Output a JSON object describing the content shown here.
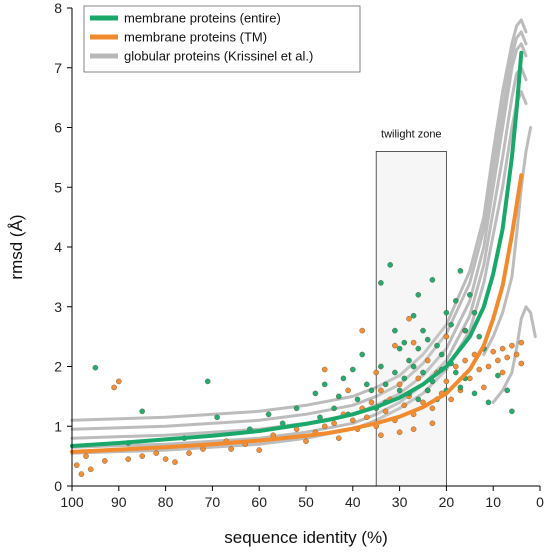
{
  "chart_data": {
    "type": "scatter",
    "xlabel": "sequence identity (%)",
    "ylabel": "rmsd (Å)",
    "xlim": [
      100,
      0
    ],
    "ylim": [
      0,
      8
    ],
    "x_reversed": true,
    "xticks": [
      100,
      90,
      80,
      70,
      60,
      50,
      40,
      30,
      20,
      10,
      0
    ],
    "yticks": [
      0,
      1,
      2,
      3,
      4,
      5,
      6,
      7,
      8
    ],
    "grid": false,
    "legend_position": "top-left",
    "legend": [
      {
        "label": "membrane proteins (entire)",
        "color": "#1aa86a"
      },
      {
        "label": "membrane proteins (TM)",
        "color": "#f28a2e"
      },
      {
        "label": "globular proteins (Krissinel et al.)",
        "color": "#b8b8b8"
      }
    ],
    "annotations": [
      {
        "text": "twilight zone",
        "x_range": [
          35,
          20
        ],
        "y_range": [
          0,
          5.6
        ]
      }
    ],
    "series": [
      {
        "name": "membrane proteins (entire)",
        "kind": "fit-line",
        "color": "#1aa86a",
        "x": [
          100,
          90,
          80,
          70,
          60,
          50,
          45,
          40,
          35,
          30,
          25,
          20,
          15,
          12,
          10,
          8,
          6,
          5,
          4
        ],
        "y": [
          0.67,
          0.72,
          0.78,
          0.84,
          0.92,
          1.04,
          1.11,
          1.2,
          1.32,
          1.48,
          1.7,
          2.0,
          2.5,
          3.0,
          3.55,
          4.3,
          5.5,
          6.3,
          7.25
        ]
      },
      {
        "name": "membrane proteins (TM)",
        "kind": "fit-line",
        "color": "#f28a2e",
        "x": [
          100,
          90,
          80,
          70,
          60,
          50,
          45,
          40,
          35,
          30,
          25,
          20,
          15,
          12,
          10,
          8,
          6,
          5,
          4
        ],
        "y": [
          0.57,
          0.61,
          0.65,
          0.7,
          0.76,
          0.84,
          0.89,
          0.96,
          1.05,
          1.16,
          1.32,
          1.55,
          1.95,
          2.35,
          2.8,
          3.35,
          4.2,
          4.7,
          5.2
        ]
      },
      {
        "name": "membrane proteins (entire)",
        "kind": "points",
        "color": "#1aa86a",
        "points": [
          [
            95,
            1.98
          ],
          [
            85,
            1.25
          ],
          [
            71,
            1.75
          ],
          [
            69,
            1.15
          ],
          [
            46,
            1.7
          ],
          [
            43,
            1.5
          ],
          [
            40,
            1.95
          ],
          [
            38,
            2.2
          ],
          [
            34,
            3.4
          ],
          [
            32,
            3.7
          ],
          [
            31,
            2.6
          ],
          [
            30,
            2.3
          ],
          [
            29,
            2.4
          ],
          [
            28,
            2.1
          ],
          [
            27,
            2.85
          ],
          [
            26,
            3.2
          ],
          [
            25,
            2.6
          ],
          [
            24,
            2.45
          ],
          [
            23,
            3.45
          ],
          [
            22,
            2.35
          ],
          [
            21,
            2.2
          ],
          [
            20,
            2.9
          ],
          [
            19,
            2.7
          ],
          [
            18,
            3.1
          ],
          [
            17,
            3.6
          ],
          [
            16,
            2.6
          ],
          [
            15,
            3.2
          ],
          [
            14,
            2.9
          ],
          [
            13,
            2.5
          ],
          [
            12,
            2.3
          ],
          [
            36,
            1.6
          ],
          [
            34,
            2.0
          ],
          [
            33,
            1.7
          ],
          [
            31,
            1.9
          ],
          [
            29,
            1.8
          ],
          [
            27,
            2.0
          ],
          [
            25,
            1.9
          ],
          [
            23,
            1.75
          ],
          [
            21,
            1.95
          ],
          [
            19,
            2.05
          ],
          [
            58,
            1.2
          ],
          [
            52,
            1.3
          ],
          [
            48,
            1.55
          ],
          [
            44,
            1.3
          ],
          [
            42,
            1.8
          ],
          [
            39,
            1.45
          ],
          [
            37,
            1.7
          ],
          [
            26,
            2.3
          ],
          [
            24,
            1.6
          ],
          [
            18,
            1.9
          ],
          [
            9,
            1.85
          ],
          [
            7,
            1.6
          ],
          [
            6,
            1.25
          ],
          [
            11,
            1.4
          ],
          [
            14,
            1.55
          ],
          [
            16,
            1.8
          ],
          [
            30,
            1.6
          ],
          [
            28,
            1.55
          ],
          [
            22,
            1.45
          ],
          [
            20,
            1.6
          ],
          [
            88,
            0.72
          ],
          [
            76,
            0.8
          ],
          [
            62,
            0.95
          ],
          [
            55,
            1.05
          ],
          [
            47,
            1.15
          ],
          [
            41,
            1.2
          ],
          [
            35,
            1.3
          ],
          [
            33,
            1.4
          ],
          [
            26,
            1.45
          ],
          [
            17,
            1.65
          ]
        ]
      },
      {
        "name": "membrane proteins (TM)",
        "kind": "points",
        "color": "#f28a2e",
        "points": [
          [
            99,
            0.35
          ],
          [
            98,
            0.2
          ],
          [
            97,
            0.5
          ],
          [
            96,
            0.28
          ],
          [
            91,
            1.65
          ],
          [
            90,
            1.75
          ],
          [
            88,
            0.45
          ],
          [
            82,
            0.55
          ],
          [
            78,
            0.4
          ],
          [
            72,
            0.62
          ],
          [
            67,
            0.75
          ],
          [
            63,
            0.7
          ],
          [
            57,
            0.85
          ],
          [
            52,
            0.95
          ],
          [
            48,
            0.9
          ],
          [
            46,
            1.0
          ],
          [
            44,
            1.05
          ],
          [
            42,
            1.2
          ],
          [
            40,
            1.1
          ],
          [
            39,
            0.95
          ],
          [
            38,
            1.3
          ],
          [
            37,
            1.15
          ],
          [
            36,
            1.4
          ],
          [
            35,
            1.0
          ],
          [
            34,
            1.6
          ],
          [
            33,
            1.25
          ],
          [
            32,
            1.45
          ],
          [
            31,
            1.1
          ],
          [
            30,
            1.7
          ],
          [
            29,
            1.35
          ],
          [
            28,
            1.5
          ],
          [
            27,
            1.2
          ],
          [
            26,
            1.8
          ],
          [
            25,
            1.4
          ],
          [
            24,
            1.6
          ],
          [
            23,
            1.3
          ],
          [
            22,
            1.9
          ],
          [
            21,
            1.55
          ],
          [
            20,
            1.75
          ],
          [
            19,
            1.45
          ],
          [
            18,
            2.0
          ],
          [
            17,
            1.6
          ],
          [
            16,
            2.1
          ],
          [
            15,
            1.8
          ],
          [
            14,
            2.2
          ],
          [
            13,
            1.95
          ],
          [
            12,
            2.3
          ],
          [
            11,
            2.0
          ],
          [
            10,
            2.25
          ],
          [
            9,
            2.1
          ],
          [
            8,
            2.3
          ],
          [
            7,
            2.15
          ],
          [
            6,
            2.35
          ],
          [
            5,
            2.2
          ],
          [
            4,
            2.05
          ],
          [
            4,
            2.4
          ],
          [
            38,
            2.6
          ],
          [
            35,
            1.9
          ],
          [
            31,
            2.35
          ],
          [
            27,
            2.4
          ],
          [
            24,
            2.1
          ],
          [
            20,
            2.5
          ],
          [
            16,
            2.6
          ],
          [
            34,
            0.85
          ],
          [
            30,
            0.9
          ],
          [
            27,
            0.95
          ],
          [
            23,
            1.05
          ],
          [
            43,
            0.8
          ],
          [
            50,
            0.75
          ],
          [
            60,
            0.6
          ],
          [
            85,
            0.5
          ],
          [
            80,
            0.45
          ],
          [
            93,
            0.42
          ],
          [
            75,
            0.55
          ],
          [
            66,
            0.62
          ],
          [
            46,
            1.95
          ],
          [
            41,
            1.6
          ],
          [
            12,
            1.65
          ],
          [
            8,
            1.9
          ],
          [
            28,
            2.8
          ]
        ]
      },
      {
        "name": "globular proteins (Krissinel et al.)",
        "kind": "contour-lines",
        "color": "#b8b8b8",
        "lines": [
          {
            "x": [
              100,
              80,
              60,
              50,
              40,
              35,
              30,
              25,
              20,
              15,
              12,
              10,
              8,
              6,
              5,
              4,
              3
            ],
            "y": [
              0.8,
              0.85,
              0.95,
              1.05,
              1.2,
              1.35,
              1.55,
              1.85,
              2.3,
              3.1,
              4.0,
              5.0,
              6.0,
              7.0,
              7.3,
              7.4,
              7.2
            ]
          },
          {
            "x": [
              100,
              80,
              60,
              50,
              40,
              35,
              30,
              25,
              20,
              15,
              12,
              10,
              8,
              6,
              5,
              4,
              3
            ],
            "y": [
              0.95,
              1.0,
              1.1,
              1.2,
              1.35,
              1.5,
              1.7,
              2.05,
              2.55,
              3.4,
              4.3,
              5.3,
              6.3,
              7.2,
              7.5,
              7.6,
              7.4
            ]
          },
          {
            "x": [
              100,
              80,
              60,
              50,
              40,
              35,
              30,
              25,
              20,
              15,
              12,
              10,
              8,
              6,
              5,
              4,
              3
            ],
            "y": [
              0.65,
              0.7,
              0.8,
              0.9,
              1.05,
              1.2,
              1.4,
              1.7,
              2.1,
              2.85,
              3.7,
              4.6,
              5.5,
              6.5,
              6.9,
              7.0,
              6.8
            ]
          },
          {
            "x": [
              100,
              80,
              60,
              50,
              40,
              35,
              30,
              25,
              20,
              15,
              12,
              10,
              8,
              6,
              5,
              4,
              3
            ],
            "y": [
              1.1,
              1.15,
              1.25,
              1.35,
              1.5,
              1.65,
              1.85,
              2.2,
              2.7,
              3.6,
              4.5,
              5.6,
              6.6,
              7.4,
              7.7,
              7.8,
              7.6
            ]
          },
          {
            "x": [
              100,
              80,
              60,
              50,
              40,
              35,
              30,
              25,
              20,
              15,
              12,
              10,
              8,
              6,
              5,
              4,
              3
            ],
            "y": [
              0.55,
              0.6,
              0.7,
              0.8,
              0.95,
              1.1,
              1.3,
              1.55,
              1.95,
              2.6,
              3.4,
              4.2,
              5.0,
              6.0,
              6.4,
              6.6,
              6.4
            ]
          },
          {
            "x": [
              12,
              10,
              8,
              6,
              5,
              4,
              3,
              2
            ],
            "y": [
              2.2,
              2.5,
              2.9,
              3.5,
              4.2,
              5.0,
              5.6,
              6.0
            ]
          },
          {
            "x": [
              10,
              8,
              6,
              5,
              4,
              3,
              2,
              1
            ],
            "y": [
              1.4,
              1.6,
              1.9,
              2.3,
              2.8,
              3.0,
              2.9,
              2.5
            ]
          }
        ]
      }
    ]
  }
}
